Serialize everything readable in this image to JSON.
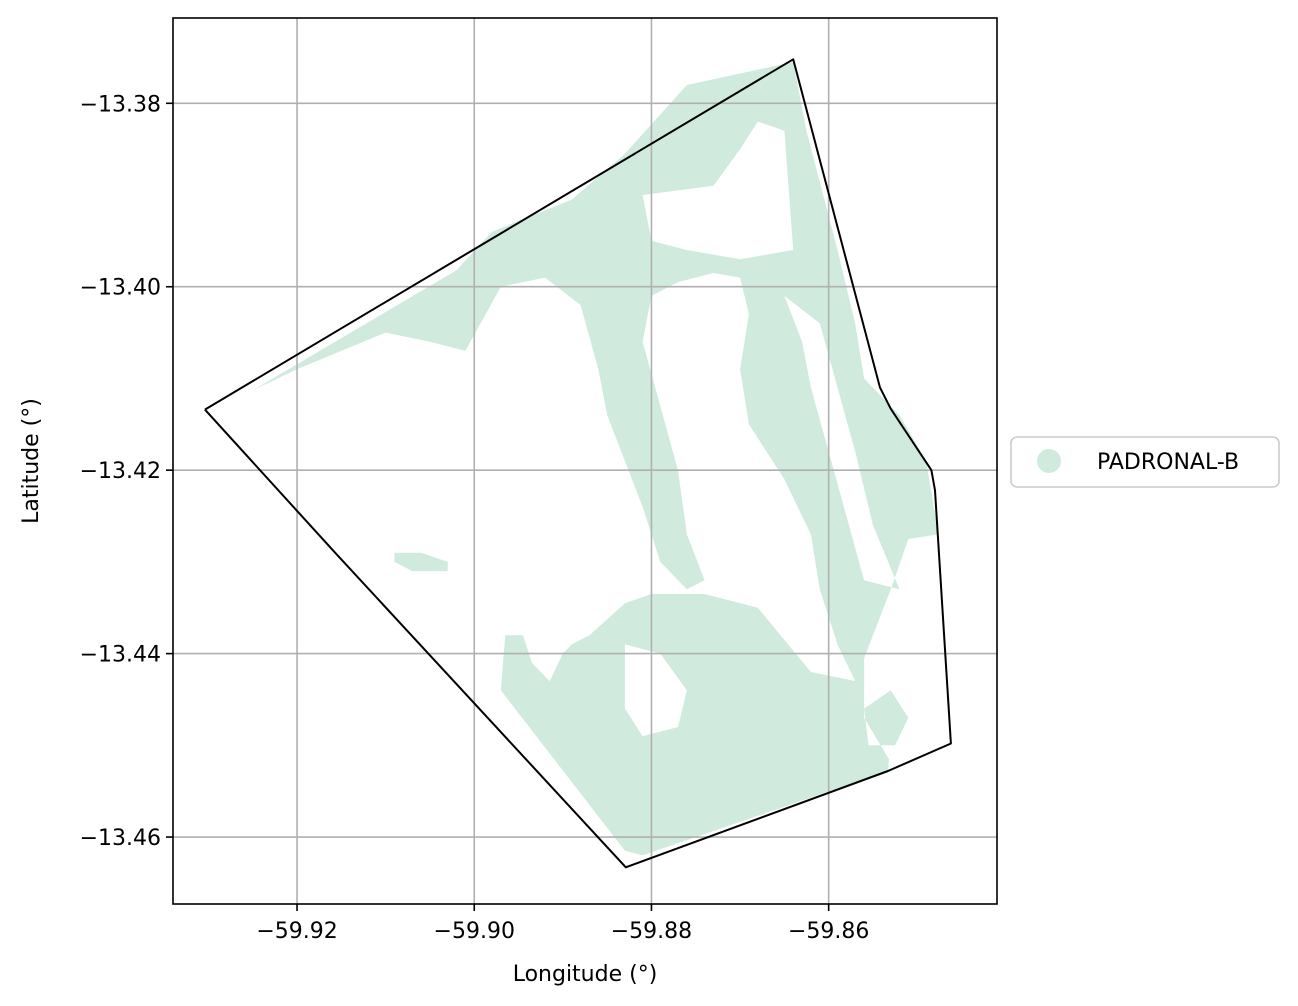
{
  "chart_data": {
    "type": "map",
    "xlabel": "Longitude (°)",
    "ylabel": "Latitude (°)",
    "xlim": [
      -59.934,
      -59.841
    ],
    "ylim": [
      -13.4673,
      -13.3707
    ],
    "grid": true,
    "x_ticks": [
      {
        "value": -59.92,
        "label": "−59.92"
      },
      {
        "value": -59.9,
        "label": "−59.90"
      },
      {
        "value": -59.88,
        "label": "−59.88"
      },
      {
        "value": -59.86,
        "label": "−59.86"
      }
    ],
    "y_ticks": [
      {
        "value": -13.38,
        "label": "−13.38"
      },
      {
        "value": -13.4,
        "label": "−13.40"
      },
      {
        "value": -13.42,
        "label": "−13.42"
      },
      {
        "value": -13.44,
        "label": "−13.44"
      },
      {
        "value": -13.46,
        "label": "−13.46"
      }
    ],
    "boundary": {
      "color": "#000000",
      "coordinates": [
        [
          -59.9304,
          -13.4134
        ],
        [
          -59.864,
          -13.3752
        ],
        [
          -59.8542,
          -13.411
        ],
        [
          -59.853,
          -13.4133
        ],
        [
          -59.8484,
          -13.42
        ],
        [
          -59.848,
          -13.4222
        ],
        [
          -59.8462,
          -13.4498
        ],
        [
          -59.8533,
          -13.4528
        ],
        [
          -59.8829,
          -13.4633
        ],
        [
          -59.9157,
          -13.429
        ],
        [
          -59.9304,
          -13.4134
        ]
      ]
    },
    "legend": {
      "placement": "right",
      "entries": [
        {
          "label": "PADRONAL-B",
          "color": "#d0ebde"
        }
      ]
    },
    "region": {
      "name": "PADRONAL-B",
      "color": "#d0ebde",
      "polygons": [
        [
          [
            -59.925,
            -13.4113
          ],
          [
            -59.902,
            -13.3982
          ],
          [
            -59.898,
            -13.394
          ],
          [
            -59.889,
            -13.3905
          ],
          [
            -59.883,
            -13.3855
          ],
          [
            -59.876,
            -13.378
          ],
          [
            -59.864,
            -13.3755
          ],
          [
            -59.8625,
            -13.383
          ],
          [
            -59.859,
            -13.396
          ],
          [
            -59.857,
            -13.404
          ],
          [
            -59.856,
            -13.41
          ],
          [
            -59.852,
            -13.414
          ],
          [
            -59.849,
            -13.419
          ],
          [
            -59.8476,
            -13.427
          ],
          [
            -59.851,
            -13.4275
          ],
          [
            -59.853,
            -13.433
          ],
          [
            -59.856,
            -13.4405
          ],
          [
            -59.856,
            -13.447
          ],
          [
            -59.8532,
            -13.4515
          ],
          [
            -59.8533,
            -13.4528
          ],
          [
            -59.881,
            -13.462
          ],
          [
            -59.883,
            -13.4615
          ],
          [
            -59.897,
            -13.444
          ],
          [
            -59.8965,
            -13.438
          ],
          [
            -59.8945,
            -13.438
          ],
          [
            -59.8935,
            -13.441
          ],
          [
            -59.8915,
            -13.443
          ],
          [
            -59.89,
            -13.44
          ],
          [
            -59.889,
            -13.439
          ],
          [
            -59.887,
            -13.438
          ],
          [
            -59.883,
            -13.4345
          ],
          [
            -59.88,
            -13.4335
          ],
          [
            -59.874,
            -13.4335
          ],
          [
            -59.868,
            -13.435
          ],
          [
            -59.862,
            -13.442
          ],
          [
            -59.857,
            -13.443
          ],
          [
            -59.859,
            -13.439
          ],
          [
            -59.861,
            -13.433
          ],
          [
            -59.862,
            -13.427
          ],
          [
            -59.865,
            -13.421
          ],
          [
            -59.869,
            -13.415
          ],
          [
            -59.87,
            -13.409
          ],
          [
            -59.869,
            -13.403
          ],
          [
            -59.87,
            -13.399
          ],
          [
            -59.873,
            -13.3985
          ],
          [
            -59.877,
            -13.3995
          ],
          [
            -59.88,
            -13.401
          ],
          [
            -59.881,
            -13.406
          ],
          [
            -59.879,
            -13.413
          ],
          [
            -59.877,
            -13.42
          ],
          [
            -59.876,
            -13.427
          ],
          [
            -59.874,
            -13.432
          ],
          [
            -59.876,
            -13.433
          ],
          [
            -59.879,
            -13.43
          ],
          [
            -59.881,
            -13.424
          ],
          [
            -59.883,
            -13.419
          ],
          [
            -59.885,
            -13.414
          ],
          [
            -59.886,
            -13.409
          ],
          [
            -59.888,
            -13.402
          ],
          [
            -59.892,
            -13.399
          ],
          [
            -59.897,
            -13.4
          ],
          [
            -59.901,
            -13.407
          ],
          [
            -59.905,
            -13.406
          ],
          [
            -59.91,
            -13.405
          ],
          [
            -59.915,
            -13.407
          ],
          [
            -59.92,
            -13.409
          ],
          [
            -59.925,
            -13.4113
          ]
        ],
        [
          [
            -59.909,
            -13.429
          ],
          [
            -59.906,
            -13.429
          ],
          [
            -59.903,
            -13.43
          ],
          [
            -59.903,
            -13.431
          ],
          [
            -59.907,
            -13.431
          ],
          [
            -59.909,
            -13.43
          ],
          [
            -59.909,
            -13.429
          ]
        ]
      ],
      "holes": [
        [
          [
            -59.881,
            -13.39
          ],
          [
            -59.873,
            -13.389
          ],
          [
            -59.87,
            -13.385
          ],
          [
            -59.868,
            -13.382
          ],
          [
            -59.865,
            -13.383
          ],
          [
            -59.864,
            -13.396
          ],
          [
            -59.87,
            -13.397
          ],
          [
            -59.876,
            -13.396
          ],
          [
            -59.88,
            -13.395
          ],
          [
            -59.881,
            -13.39
          ]
        ],
        [
          [
            -59.865,
            -13.401
          ],
          [
            -59.863,
            -13.406
          ],
          [
            -59.862,
            -13.411
          ],
          [
            -59.86,
            -13.418
          ],
          [
            -59.858,
            -13.425
          ],
          [
            -59.856,
            -13.432
          ],
          [
            -59.852,
            -13.433
          ],
          [
            -59.855,
            -13.426
          ],
          [
            -59.857,
            -13.418
          ],
          [
            -59.859,
            -13.411
          ],
          [
            -59.861,
            -13.404
          ],
          [
            -59.865,
            -13.401
          ]
        ],
        [
          [
            -59.883,
            -13.439
          ],
          [
            -59.879,
            -13.44
          ],
          [
            -59.876,
            -13.444
          ],
          [
            -59.877,
            -13.448
          ],
          [
            -59.881,
            -13.449
          ],
          [
            -59.883,
            -13.446
          ],
          [
            -59.883,
            -13.439
          ]
        ],
        [
          [
            -59.856,
            -13.446
          ],
          [
            -59.853,
            -13.444
          ],
          [
            -59.851,
            -13.447
          ],
          [
            -59.8525,
            -13.45
          ],
          [
            -59.8555,
            -13.45
          ],
          [
            -59.856,
            -13.446
          ]
        ]
      ]
    }
  }
}
